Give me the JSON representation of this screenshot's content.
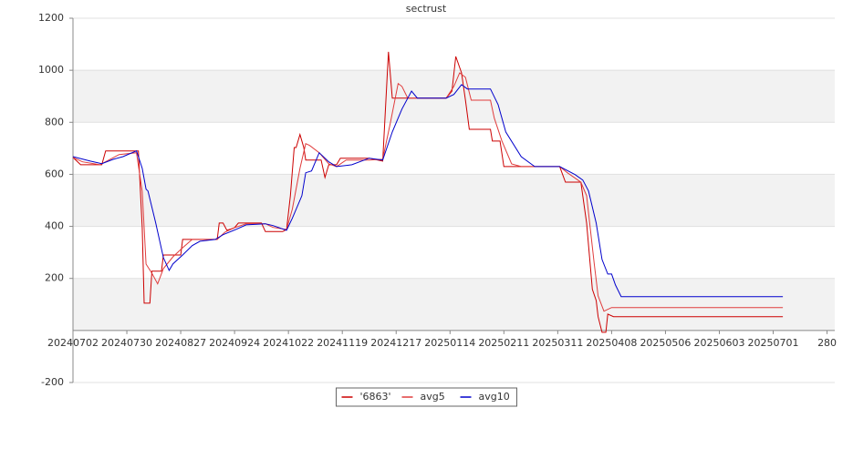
{
  "chart_data": {
    "type": "line",
    "title": "sectrust",
    "xlim": [
      0,
      396
    ],
    "xticks": [
      {
        "value": 0,
        "label": "20240702"
      },
      {
        "value": 28,
        "label": "20240730"
      },
      {
        "value": 56,
        "label": "20240827"
      },
      {
        "value": 84,
        "label": "20240924"
      },
      {
        "value": 112,
        "label": "20241022"
      },
      {
        "value": 140,
        "label": "20241119"
      },
      {
        "value": 168,
        "label": "20241217"
      },
      {
        "value": 196,
        "label": "20250114"
      },
      {
        "value": 224,
        "label": "20250211"
      },
      {
        "value": 252,
        "label": "20250311"
      },
      {
        "value": 280,
        "label": "20250408"
      },
      {
        "value": 308,
        "label": "20250506"
      },
      {
        "value": 336,
        "label": "20250603"
      },
      {
        "value": 364,
        "label": "20250701"
      },
      {
        "value": 392,
        "label": "280"
      }
    ],
    "ylim": [
      -200,
      1200
    ],
    "yticks": [
      -200,
      200,
      400,
      600,
      800,
      1000,
      1200
    ],
    "bands": [
      [
        0,
        200
      ],
      [
        400,
        600
      ],
      [
        800,
        1000
      ]
    ],
    "legend": "bottom",
    "series": [
      {
        "name": "'6863'",
        "color": "#cc0000",
        "x": [
          0,
          4,
          15,
          17,
          32,
          34,
          36,
          37,
          40,
          41,
          46,
          47,
          56,
          57,
          68,
          75,
          76,
          78,
          80,
          84,
          86,
          98,
          100,
          109,
          111,
          113,
          115,
          116,
          118,
          120,
          121,
          126,
          129,
          131,
          133,
          137,
          139,
          154,
          161,
          164,
          166,
          171,
          194,
          197,
          199,
          202,
          204,
          206,
          217,
          218,
          222,
          224,
          253,
          256,
          264,
          267,
          270,
          272,
          273,
          275,
          277,
          278,
          281,
          369
        ],
        "values": [
          665,
          637,
          637,
          690,
          690,
          690,
          395,
          105,
          105,
          228,
          228,
          290,
          290,
          350,
          350,
          350,
          413,
          413,
          385,
          395,
          413,
          413,
          380,
          380,
          388,
          518,
          703,
          703,
          753,
          703,
          655,
          655,
          655,
          588,
          637,
          637,
          662,
          662,
          651,
          1071,
          893,
          893,
          893,
          920,
          1053,
          990,
          885,
          773,
          773,
          728,
          728,
          630,
          630,
          570,
          570,
          413,
          158,
          115,
          53,
          -7,
          -7,
          63,
          53,
          53
        ]
      },
      {
        "name": "avg5",
        "color": "#e03c3c",
        "x": [
          0,
          5,
          14,
          24,
          33,
          36,
          38,
          41,
          44,
          47,
          52,
          57,
          62,
          75,
          79,
          84,
          90,
          100,
          104,
          111,
          114,
          118,
          121,
          123,
          128,
          133,
          137,
          142,
          154,
          161,
          165,
          169,
          171,
          174,
          194,
          198,
          201,
          204,
          207,
          217,
          219,
          223,
          228,
          233,
          253,
          257,
          264,
          267,
          271,
          273,
          276,
          280,
          369
        ],
        "values": [
          665,
          648,
          637,
          676,
          683,
          535,
          255,
          220,
          179,
          238,
          283,
          318,
          350,
          350,
          378,
          395,
          410,
          410,
          396,
          388,
          466,
          623,
          718,
          711,
          683,
          640,
          630,
          655,
          655,
          658,
          798,
          949,
          938,
          893,
          893,
          938,
          990,
          973,
          885,
          885,
          816,
          728,
          640,
          630,
          630,
          606,
          570,
          518,
          255,
          133,
          74,
          88,
          88
        ]
      },
      {
        "name": "avg10",
        "color": "#0000cc",
        "x": [
          0,
          9,
          15,
          21,
          26,
          33,
          36,
          38,
          39,
          43,
          47,
          50,
          52,
          57,
          62,
          66,
          74,
          78,
          85,
          90,
          100,
          104,
          111,
          114,
          119,
          121,
          124,
          128,
          133,
          137,
          145,
          154,
          161,
          166,
          171,
          176,
          179,
          194,
          198,
          202,
          205,
          217,
          221,
          225,
          233,
          240,
          253,
          261,
          265,
          268,
          272,
          275,
          278,
          280,
          282,
          285,
          369
        ],
        "values": [
          668,
          651,
          641,
          658,
          668,
          690,
          623,
          543,
          536,
          413,
          280,
          231,
          256,
          290,
          326,
          343,
          350,
          368,
          389,
          406,
          410,
          403,
          385,
          431,
          518,
          606,
          613,
          683,
          648,
          630,
          637,
          662,
          655,
          763,
          851,
          920,
          893,
          893,
          907,
          945,
          928,
          928,
          868,
          763,
          668,
          630,
          630,
          599,
          578,
          536,
          413,
          273,
          217,
          217,
          175,
          130,
          130
        ]
      }
    ]
  }
}
